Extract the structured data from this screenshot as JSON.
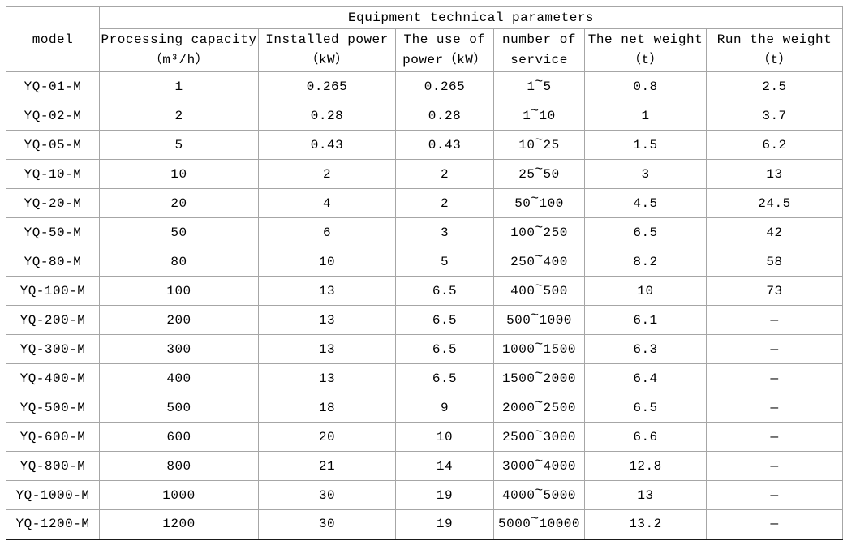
{
  "chart_data": {
    "type": "table",
    "title": "Equipment technical parameters",
    "columns": [
      "model",
      "Processing capacity（m³/h）",
      "Installed power（kW）",
      "The use of power（kW）",
      "number of service",
      "The net weight（t）",
      "Run the weight（t）"
    ],
    "rows": [
      [
        "YQ-01-M",
        "1",
        "0.265",
        "0.265",
        "1~5",
        "0.8",
        "2.5"
      ],
      [
        "YQ-02-M",
        "2",
        "0.28",
        "0.28",
        "1~10",
        "1",
        "3.7"
      ],
      [
        "YQ-05-M",
        "5",
        "0.43",
        "0.43",
        "10~25",
        "1.5",
        "6.2"
      ],
      [
        "YQ-10-M",
        "10",
        "2",
        "2",
        "25~50",
        "3",
        "13"
      ],
      [
        "YQ-20-M",
        "20",
        "4",
        "2",
        "50~100",
        "4.5",
        "24.5"
      ],
      [
        "YQ-50-M",
        "50",
        "6",
        "3",
        "100~250",
        "6.5",
        "42"
      ],
      [
        "YQ-80-M",
        "80",
        "10",
        "5",
        "250~400",
        "8.2",
        "58"
      ],
      [
        "YQ-100-M",
        "100",
        "13",
        "6.5",
        "400~500",
        "10",
        "73"
      ],
      [
        "YQ-200-M",
        "200",
        "13",
        "6.5",
        "500~1000",
        "6.1",
        "—"
      ],
      [
        "YQ-300-M",
        "300",
        "13",
        "6.5",
        "1000~1500",
        "6.3",
        "—"
      ],
      [
        "YQ-400-M",
        "400",
        "13",
        "6.5",
        "1500~2000",
        "6.4",
        "—"
      ],
      [
        "YQ-500-M",
        "500",
        "18",
        "9",
        "2000~2500",
        "6.5",
        "—"
      ],
      [
        "YQ-600-M",
        "600",
        "20",
        "10",
        "2500~3000",
        "6.6",
        "—"
      ],
      [
        "YQ-800-M",
        "800",
        "21",
        "14",
        "3000~4000",
        "12.8",
        "—"
      ],
      [
        "YQ-1000-M",
        "1000",
        "30",
        "19",
        "4000~5000",
        "13",
        "—"
      ],
      [
        "YQ-1200-M",
        "1200",
        "30",
        "19",
        "5000~10000",
        "13.2",
        "—"
      ]
    ]
  },
  "header": {
    "model_label": "model",
    "group_title": "Equipment technical parameters",
    "sub_columns": [
      {
        "line1": "Processing capacity",
        "line2": "（m³/h）"
      },
      {
        "line1": "Installed power",
        "line2": "（kW）"
      },
      {
        "line1": "The use of",
        "line2": "power（kW）"
      },
      {
        "line1": "number of",
        "line2": "service"
      },
      {
        "line1": "The net weight",
        "line2": "（t）"
      },
      {
        "line1": "Run the weight",
        "line2": "（t）"
      }
    ]
  },
  "colors": {
    "grid_line": "#a6a6a6",
    "outer_bottom_border": "#1a1a1a",
    "text": "#000000",
    "background": "#ffffff"
  }
}
